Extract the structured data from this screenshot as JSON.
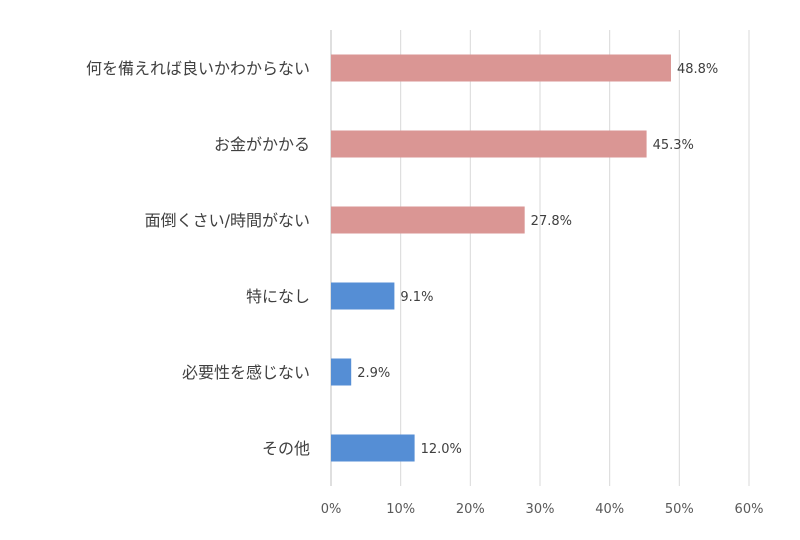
{
  "chart_data": {
    "type": "bar",
    "orientation": "horizontal",
    "categories": [
      "何を備えれば良いかわからない",
      "お金がかかる",
      "面倒くさい/時間がない",
      "特になし",
      "必要性を感じない",
      "その他"
    ],
    "values": [
      48.8,
      45.3,
      27.8,
      9.1,
      2.9,
      12.0
    ],
    "value_labels": [
      "48.8%",
      "45.3%",
      "27.8%",
      "9.1%",
      "2.9%",
      "12.0%"
    ],
    "bar_colors": [
      "#da9694",
      "#da9694",
      "#da9694",
      "#558ed5",
      "#558ed5",
      "#558ed5"
    ],
    "xlim": [
      0,
      60
    ],
    "x_ticks": [
      0,
      10,
      20,
      30,
      40,
      50,
      60
    ],
    "x_tick_labels": [
      "0%",
      "10%",
      "20%",
      "30%",
      "40%",
      "50%",
      "60%"
    ],
    "grid": true,
    "legend": "none"
  }
}
